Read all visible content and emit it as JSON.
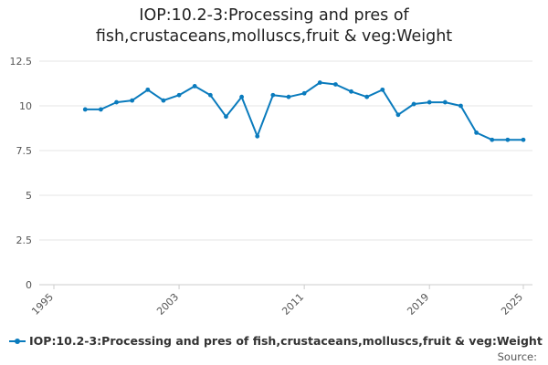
{
  "chart_data": {
    "type": "line",
    "title_lines": [
      "IOP:10.2-3:Processing and pres of",
      "fish,crustaceans,molluscs,fruit & veg:Weight"
    ],
    "xlabel": "",
    "ylabel": "",
    "x_ticks": [
      "1995",
      "2003",
      "2011",
      "2019",
      "2025"
    ],
    "y_ticks": [
      "0",
      "2.5",
      "5",
      "7.5",
      "10",
      "12.5"
    ],
    "xlim": [
      1995,
      2025
    ],
    "ylim": [
      0,
      12.5
    ],
    "grid": true,
    "legend_position": "bottom-left",
    "series": [
      {
        "name": "IOP:10.2-3:Processing and pres of fish,crustaceans,molluscs,fruit & veg:Weight",
        "color": "#0a7bbd",
        "x": [
          1997,
          1998,
          1999,
          2000,
          2001,
          2002,
          2003,
          2004,
          2005,
          2006,
          2007,
          2008,
          2009,
          2010,
          2011,
          2012,
          2013,
          2014,
          2015,
          2016,
          2017,
          2018,
          2019,
          2020,
          2021,
          2022,
          2023,
          2024,
          2025
        ],
        "y": [
          9.8,
          9.8,
          10.2,
          10.3,
          10.9,
          10.3,
          10.6,
          11.1,
          10.6,
          9.4,
          10.5,
          8.3,
          10.6,
          10.5,
          10.7,
          11.3,
          11.2,
          10.8,
          10.5,
          10.9,
          9.5,
          10.1,
          10.2,
          10.2,
          10.0,
          8.5,
          8.1,
          8.1,
          8.1
        ]
      }
    ]
  },
  "legend": {
    "label": "IOP:10.2-3:Processing and pres of fish,crustaceans,molluscs,fruit & veg:Weight"
  },
  "source": {
    "label": "Source:"
  }
}
